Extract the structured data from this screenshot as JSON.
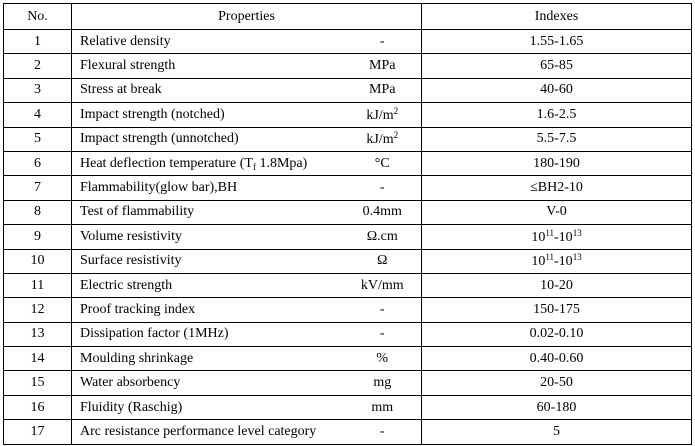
{
  "table": {
    "header": [
      "No.",
      "Properties",
      "Indexes"
    ],
    "rows": [
      [
        "1",
        "Relative density",
        "-",
        "1.55-1.65"
      ],
      [
        "2",
        "Flexural strength",
        "MPa",
        "65-85"
      ],
      [
        "3",
        "Stress at break",
        "MPa",
        "40-60"
      ],
      [
        "4",
        "Impact strength (notched)",
        [
          {
            "t": "kJ/m"
          },
          {
            "sup": "2"
          }
        ],
        "1.6-2.5"
      ],
      [
        "5",
        "Impact strength (unnotched)",
        [
          {
            "t": "kJ/m"
          },
          {
            "sup": "2"
          }
        ],
        "5.5-7.5"
      ],
      [
        "6",
        [
          {
            "t": "Heat deflection temperature (T"
          },
          {
            "sub": "f"
          },
          {
            "t": " 1.8Mpa)"
          }
        ],
        "°C",
        "180-190"
      ],
      [
        "7",
        "Flammability(glow bar),BH",
        "-",
        "≤BH2-10"
      ],
      [
        "8",
        "Test of flammability",
        "0.4mm",
        "V-0"
      ],
      [
        "9",
        "Volume resistivity",
        "Ω.cm",
        [
          {
            "t": "10"
          },
          {
            "sup": "11"
          },
          {
            "t": "-10"
          },
          {
            "sup": "13"
          }
        ]
      ],
      [
        "10",
        "Surface resistivity",
        "Ω",
        [
          {
            "t": "10"
          },
          {
            "sup": "11"
          },
          {
            "t": "-10"
          },
          {
            "sup": "13"
          }
        ]
      ],
      [
        "11",
        "Electric strength",
        "kV/mm",
        "10-20"
      ],
      [
        "12",
        "Proof tracking index",
        "-",
        "150-175"
      ],
      [
        "13",
        "Dissipation factor (1MHz)",
        "-",
        "0.02-0.10"
      ],
      [
        "14",
        "Moulding shrinkage",
        "%",
        "0.40-0.60"
      ],
      [
        "15",
        "Water absorbency",
        "mg",
        "20-50"
      ],
      [
        "16",
        "Fluidity (Raschig)",
        "mm",
        "60-180"
      ],
      [
        "17",
        "Arc resistance performance level category",
        "-",
        "5"
      ]
    ]
  }
}
